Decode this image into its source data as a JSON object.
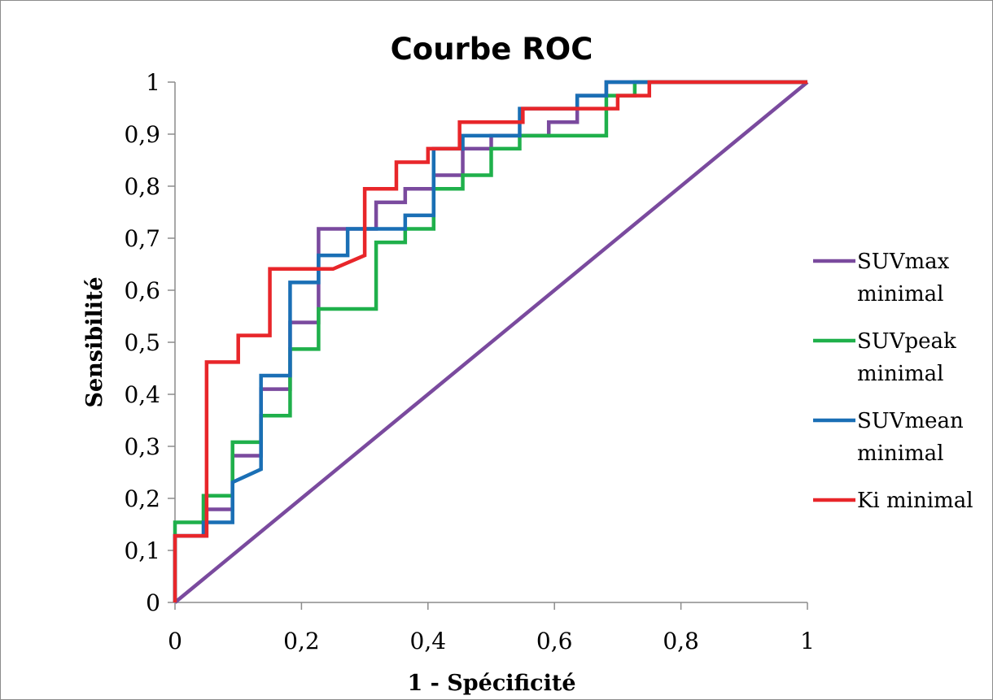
{
  "chart_data": {
    "type": "line",
    "title": "Courbe ROC",
    "xlabel": "1 - Spécificité",
    "ylabel": "Sensibilité",
    "xlim": [
      0,
      1
    ],
    "ylim": [
      0,
      1
    ],
    "x_ticks": [
      "0",
      "0,2",
      "0,4",
      "0,6",
      "0,8",
      "1"
    ],
    "y_ticks": [
      "0",
      "0,1",
      "0,2",
      "0,3",
      "0,4",
      "0,5",
      "0,6",
      "0,7",
      "0,8",
      "0,9",
      "1"
    ],
    "grid": false,
    "legend_position": "right",
    "reference_line": {
      "x": [
        0,
        1
      ],
      "y": [
        0,
        1
      ],
      "color": "#7a4a9e"
    },
    "series": [
      {
        "name_lines": [
          "SUVmax",
          "minimal"
        ],
        "color": "#7a4a9e",
        "x": [
          0,
          0,
          0.05,
          0.05,
          0.091,
          0.091,
          0.136,
          0.136,
          0.182,
          0.182,
          0.227,
          0.227,
          0.318,
          0.318,
          0.364,
          0.364,
          0.409,
          0.409,
          0.455,
          0.455,
          0.5,
          0.5,
          0.591,
          0.591,
          0.636,
          0.636,
          0.682,
          0.682,
          1
        ],
        "y": [
          0,
          0.128,
          0.128,
          0.179,
          0.179,
          0.282,
          0.282,
          0.41,
          0.41,
          0.538,
          0.538,
          0.718,
          0.718,
          0.769,
          0.769,
          0.795,
          0.795,
          0.821,
          0.821,
          0.872,
          0.872,
          0.897,
          0.897,
          0.923,
          0.923,
          0.974,
          0.974,
          1,
          1
        ]
      },
      {
        "name_lines": [
          "SUVpeak",
          "minimal"
        ],
        "color": "#1fb04b",
        "x": [
          0,
          0,
          0.045,
          0.045,
          0.091,
          0.091,
          0.136,
          0.136,
          0.182,
          0.182,
          0.227,
          0.227,
          0.318,
          0.318,
          0.364,
          0.364,
          0.409,
          0.409,
          0.455,
          0.455,
          0.5,
          0.5,
          0.545,
          0.545,
          0.682,
          0.682,
          0.727,
          0.727,
          1
        ],
        "y": [
          0,
          0.154,
          0.154,
          0.205,
          0.205,
          0.308,
          0.308,
          0.359,
          0.359,
          0.487,
          0.487,
          0.564,
          0.564,
          0.692,
          0.692,
          0.718,
          0.718,
          0.795,
          0.795,
          0.821,
          0.821,
          0.872,
          0.872,
          0.897,
          0.897,
          0.974,
          0.974,
          1,
          1
        ]
      },
      {
        "name_lines": [
          "SUVmean",
          "minimal"
        ],
        "color": "#1a6fb5",
        "x": [
          0,
          0,
          0.045,
          0.045,
          0.091,
          0.091,
          0.136,
          0.136,
          0.182,
          0.182,
          0.227,
          0.227,
          0.273,
          0.273,
          0.364,
          0.364,
          0.409,
          0.409,
          0.455,
          0.455,
          0.545,
          0.545,
          0.636,
          0.636,
          0.682,
          0.682,
          1
        ],
        "y": [
          0,
          0.128,
          0.128,
          0.154,
          0.154,
          0.231,
          0.256,
          0.436,
          0.436,
          0.615,
          0.615,
          0.667,
          0.667,
          0.718,
          0.718,
          0.744,
          0.744,
          0.872,
          0.872,
          0.897,
          0.897,
          0.949,
          0.949,
          0.974,
          0.974,
          1,
          1
        ]
      },
      {
        "name_lines": [
          "Ki minimal"
        ],
        "color": "#e8262a",
        "x": [
          0,
          0,
          0.05,
          0.05,
          0.1,
          0.1,
          0.15,
          0.15,
          0.25,
          0.3,
          0.3,
          0.35,
          0.35,
          0.4,
          0.4,
          0.45,
          0.45,
          0.55,
          0.55,
          0.7,
          0.7,
          0.75,
          0.75,
          1
        ],
        "y": [
          0,
          0.128,
          0.128,
          0.462,
          0.462,
          0.513,
          0.513,
          0.641,
          0.641,
          0.667,
          0.795,
          0.795,
          0.846,
          0.846,
          0.872,
          0.872,
          0.923,
          0.923,
          0.949,
          0.949,
          0.974,
          0.974,
          1,
          1
        ]
      }
    ]
  }
}
